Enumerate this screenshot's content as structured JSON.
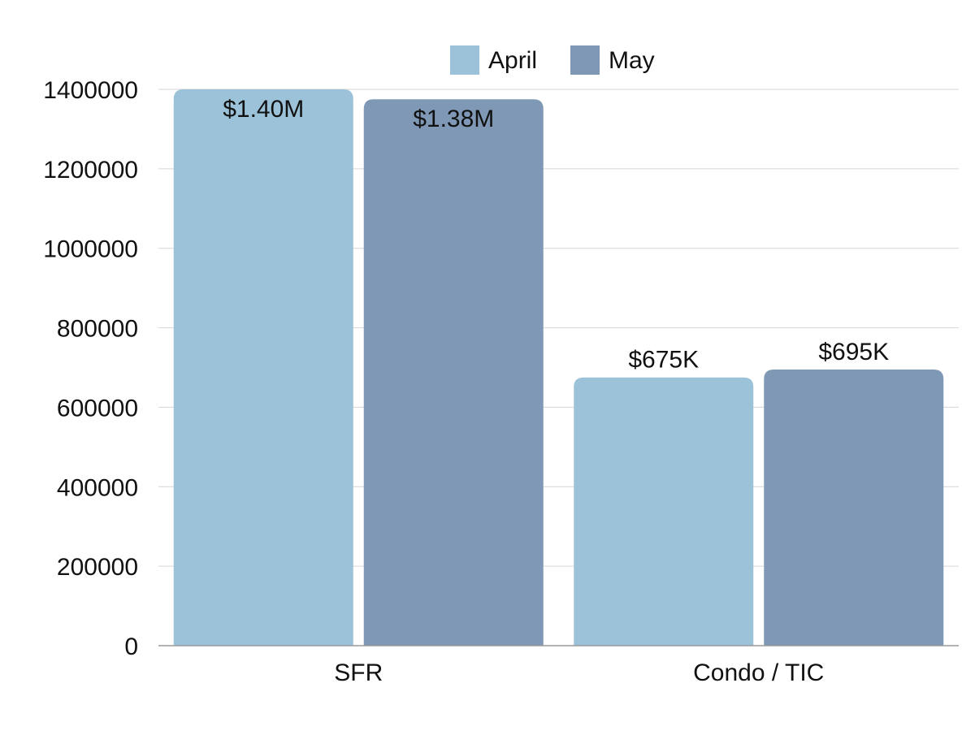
{
  "chart_data": {
    "type": "bar",
    "title": "",
    "xlabel": "",
    "ylabel": "",
    "categories": [
      "SFR",
      "Condo / TIC"
    ],
    "series": [
      {
        "name": "April",
        "color": "#9bc2d8",
        "values": [
          1400000,
          675000
        ],
        "labels": [
          "$1.40M",
          "$675K"
        ]
      },
      {
        "name": "May",
        "color": "#7f98b5",
        "values": [
          1375000,
          695000
        ],
        "labels": [
          "$1.38M",
          "$695K"
        ]
      }
    ],
    "ylim": [
      0,
      1400000
    ],
    "yticks": [
      "0",
      "200000",
      "400000",
      "600000",
      "800000",
      "1000000",
      "1200000",
      "1400000"
    ],
    "grid": true,
    "legend": "top-center"
  }
}
